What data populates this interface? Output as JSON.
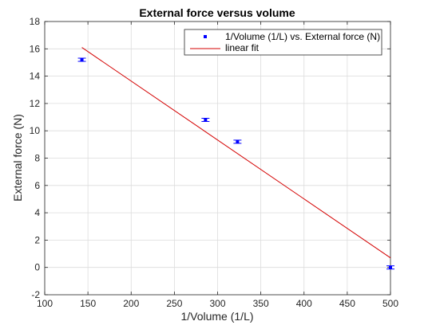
{
  "chart_data": {
    "type": "scatter",
    "title": "External force versus volume",
    "xlabel": "1/Volume (1/L)",
    "ylabel": "External force (N)",
    "xlim": [
      100,
      500
    ],
    "ylim": [
      -2,
      18
    ],
    "xticks": [
      "100",
      "150",
      "200",
      "250",
      "300",
      "350",
      "400",
      "450",
      "500"
    ],
    "yticks": [
      "-2",
      "0",
      "2",
      "4",
      "6",
      "8",
      "10",
      "12",
      "14",
      "16",
      "18"
    ],
    "grid": true,
    "legend_position": "top-right",
    "series": [
      {
        "name": "1/Volume (1/L) vs. External force (N)",
        "kind": "points",
        "color": "#0000ff",
        "points": [
          {
            "x": 143,
            "y": 15.2
          },
          {
            "x": 286,
            "y": 10.8
          },
          {
            "x": 323,
            "y": 9.2
          },
          {
            "x": 500,
            "y": 0
          }
        ]
      },
      {
        "name": "linear fit",
        "kind": "line",
        "color": "#d40000",
        "points": [
          {
            "x": 143,
            "y": 16.1
          },
          {
            "x": 500,
            "y": 0.7
          }
        ]
      }
    ]
  }
}
